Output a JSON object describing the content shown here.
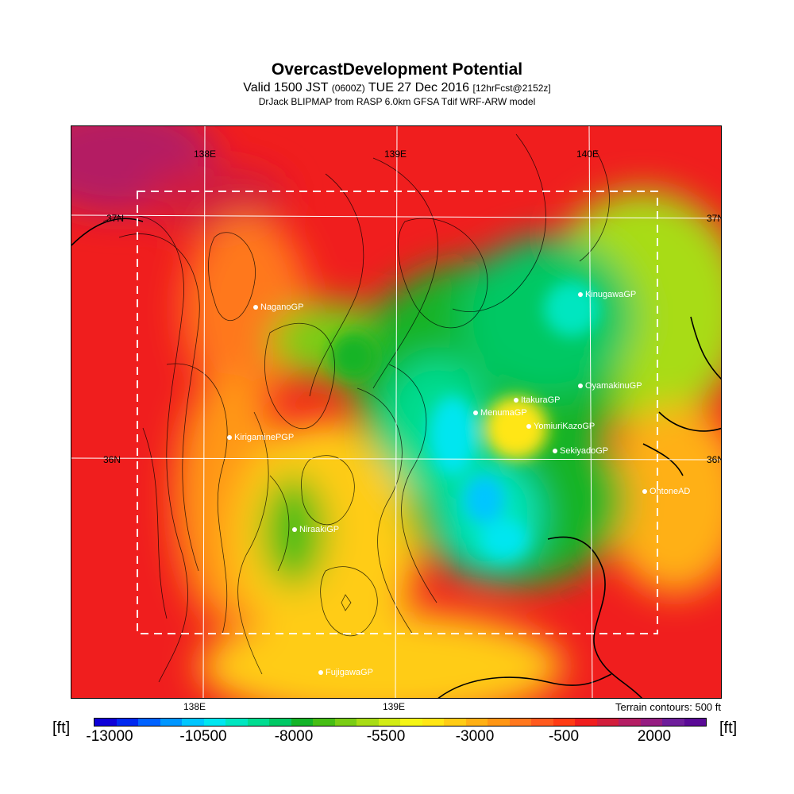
{
  "header": {
    "title": "OvercastDevelopment Potential",
    "valid_main": "Valid 1500 JST",
    "valid_zulu": "(0600Z)",
    "valid_date": "TUE 27 Dec 2016",
    "forecast": "[12hrFcst@2152z]",
    "model": "DrJack BLIPMAP from RASP 6.0km GFSA Tdif WRF-ARW model"
  },
  "map": {
    "lon_labels": [
      "138E",
      "139E",
      "140E"
    ],
    "lat_labels": [
      "37N",
      "36N"
    ],
    "sites": [
      {
        "name": "NaganoGP"
      },
      {
        "name": "KinugawaGP"
      },
      {
        "name": "OyamakinuGP"
      },
      {
        "name": "ItakuraGP"
      },
      {
        "name": "MenumaGP"
      },
      {
        "name": "YomiuriKazoGP"
      },
      {
        "name": "KirigaminePGP"
      },
      {
        "name": "SekiyadoGP"
      },
      {
        "name": "OhtoneAD"
      },
      {
        "name": "NiraakiGP"
      },
      {
        "name": "FujigawaGP"
      }
    ]
  },
  "footer": {
    "terrain_note": "Terrain contours: 500 ft",
    "unit_label": "[ft]"
  },
  "colorbar": {
    "labels": [
      "-13000",
      "-10500",
      "-8000",
      "-5500",
      "-3000",
      "-500",
      "2000"
    ],
    "colors": [
      "#0e00d8",
      "#0028f0",
      "#0062ff",
      "#0096ff",
      "#00c6ff",
      "#00e6f0",
      "#00e6c0",
      "#00dc90",
      "#00c864",
      "#14b428",
      "#46be14",
      "#7acd14",
      "#a8dc14",
      "#d2ec14",
      "#f5f514",
      "#ffe614",
      "#ffcc14",
      "#ffb014",
      "#ff9614",
      "#ff781e",
      "#ff5a1e",
      "#ff3c14",
      "#f01e1e",
      "#d21e3c",
      "#b41e64",
      "#961e82",
      "#6e1e9b",
      "#5a0a96"
    ]
  }
}
